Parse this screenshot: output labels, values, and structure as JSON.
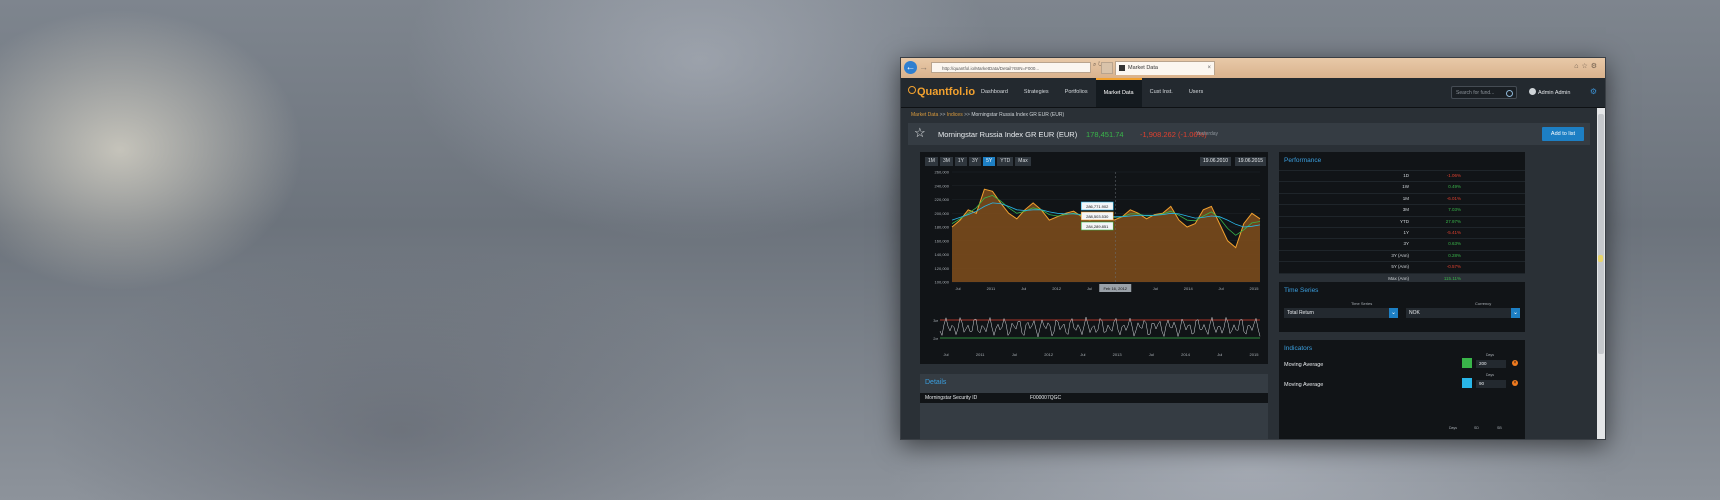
{
  "browser": {
    "address": "http://quantfol.io/MarketData/Detail?ISIN=F000...",
    "tab_title": "Market Data"
  },
  "app": {
    "logo": "Quantfol.io",
    "menu": [
      "Dashboard",
      "Strategies",
      "Portfolios",
      "Market Data",
      "Cust Inst.",
      "Users"
    ],
    "active_menu": "Market Data",
    "search_placeholder": "Search for fund...",
    "user": "Admin Admin"
  },
  "breadcrumb": {
    "first": "Market Data",
    "second": "Indices",
    "current": "Morningstar Russia Index GR EUR (EUR)",
    "sep": ">>"
  },
  "security": {
    "name": "Morningstar Russia Index GR EUR (EUR)",
    "price": "178,451.74",
    "change": "-1,908.262 (-1.06%)",
    "when": "Yesterday",
    "add_button": "Add to list"
  },
  "chart": {
    "ranges": [
      "1M",
      "3M",
      "1Y",
      "3Y",
      "5Y",
      "YTD",
      "Max"
    ],
    "active_range": "5Y",
    "date_from": "19.06.2010",
    "date_to": "19.06.2015",
    "tooltip_values": [
      "286,771.902",
      "288,503.530",
      "284,289.851"
    ],
    "tooltip_date": "Feb 16, 2012"
  },
  "chart_data": [
    {
      "type": "area",
      "title": "",
      "y_ticks": [
        "260,000",
        "240,000",
        "220,000",
        "200,000",
        "180,000",
        "160,000",
        "140,000",
        "120,000",
        "100,000"
      ],
      "x_ticks": [
        "Jul",
        "2011",
        "Jul",
        "2012",
        "Jul",
        "2013",
        "Jul",
        "2014",
        "Jul",
        "2015"
      ],
      "ylim": [
        100000,
        260000
      ],
      "series": [
        {
          "values": [
            180000,
            190000,
            205000,
            200000,
            235000,
            232000,
            215000,
            200000,
            192000,
            205000,
            215000,
            205000,
            190000,
            195000,
            200000,
            203000,
            195000,
            190000,
            195000,
            200000,
            190000,
            195000,
            205000,
            200000,
            192000,
            198000,
            200000,
            210000,
            190000,
            180000,
            185000,
            205000,
            210000,
            185000,
            160000,
            150000,
            185000,
            200000,
            192000
          ]
        },
        {
          "values": [
            185000,
            192000,
            200000,
            208000,
            222000,
            226000,
            218000,
            208000,
            200000,
            203000,
            208000,
            205000,
            198000,
            196000,
            198000,
            200000,
            197000,
            194000,
            195000,
            197000,
            194000,
            195000,
            199000,
            199000,
            196000,
            197000,
            199000,
            203000,
            197000,
            190000,
            189000,
            196000,
            202000,
            193000,
            178000,
            168000,
            176000,
            186000,
            188000
          ]
        },
        {
          "values": [
            190000,
            194000,
            198000,
            203000,
            210000,
            215000,
            214000,
            210000,
            205000,
            204000,
            205000,
            205000,
            202000,
            200000,
            199000,
            199000,
            198000,
            197000,
            196000,
            196000,
            195000,
            195000,
            196000,
            197000,
            197000,
            197000,
            198000,
            200000,
            199000,
            196000,
            193000,
            194000,
            196000,
            195000,
            190000,
            184000,
            180000,
            181000,
            183000
          ]
        }
      ]
    },
    {
      "type": "line",
      "title": "",
      "y_ticks": [
        "3σ",
        "2σ"
      ],
      "x_ticks": [
        "Jul",
        "2011",
        "Jul",
        "2012",
        "Jul",
        "2013",
        "Jul",
        "2014",
        "Jul",
        "2015"
      ]
    }
  ],
  "performance": {
    "title": "Performance",
    "rows": [
      {
        "label": "1D",
        "value": "-1.06%",
        "sign": "neg"
      },
      {
        "label": "1W",
        "value": "0.49%",
        "sign": "pos"
      },
      {
        "label": "1M",
        "value": "-6.01%",
        "sign": "neg"
      },
      {
        "label": "3M",
        "value": "7.03%",
        "sign": "pos"
      },
      {
        "label": "YTD",
        "value": "27.97%",
        "sign": "pos"
      },
      {
        "label": "1Y",
        "value": "-5.41%",
        "sign": "neg"
      },
      {
        "label": "3Y",
        "value": "0.63%",
        "sign": "pos"
      },
      {
        "label": "3Y (Ann)",
        "value": "0.28%",
        "sign": "pos"
      },
      {
        "label": "5Y (Ann)",
        "value": "-0.57%",
        "sign": "neg"
      },
      {
        "label": "Max (Ann)",
        "value": "115.11%",
        "sign": "pos"
      }
    ]
  },
  "time_series": {
    "title": "Time Series",
    "series_label": "Time Series",
    "series_value": "Total Return",
    "currency_label": "Currency",
    "currency_value": "NOK"
  },
  "indicators": {
    "title": "Indicators",
    "days_label": "Days",
    "rows": [
      {
        "name": "Moving Average",
        "color": "#39b54a",
        "days": "200"
      },
      {
        "name": "Moving Average",
        "color": "#29b6e8",
        "days": "90"
      }
    ],
    "sub_labels": [
      "Days",
      "SD",
      "SB"
    ]
  },
  "details": {
    "title": "Details",
    "key": "Morningstar Security ID",
    "value": "F000007QGC"
  },
  "colors": {
    "accent": "#f2a12f",
    "blue": "#1d7fc4",
    "positive": "#39b54a",
    "negative": "#e0402f"
  }
}
